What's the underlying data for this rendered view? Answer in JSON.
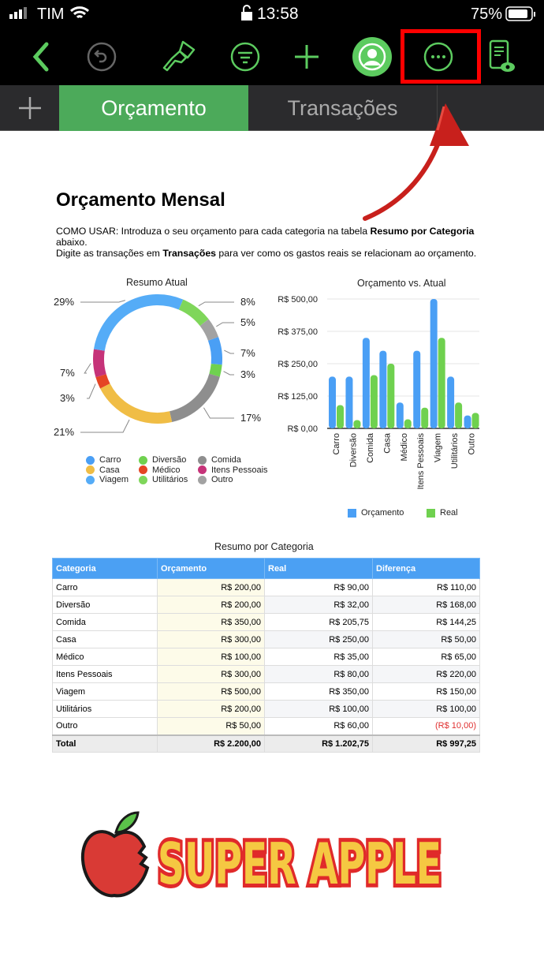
{
  "status": {
    "carrier": "TIM",
    "time": "13:58",
    "battery": "75%"
  },
  "tabs": [
    {
      "label": "Orçamento",
      "active": true
    },
    {
      "label": "Transações",
      "active": false
    }
  ],
  "page": {
    "title": "Orçamento Mensal",
    "desc1a": "COMO USAR: Introduza o seu orçamento para cada categoria na tabela ",
    "desc1b": "Resumo por Categoria",
    "desc1c": " abaixo.",
    "desc2a": "Digite as transações em ",
    "desc2b": "Transações",
    "desc2c": " para ver como os gastos reais se relacionam ao orçamento."
  },
  "colors": {
    "accent": "#4caf50",
    "highlight": "#ff0000"
  },
  "chart_data": [
    {
      "type": "pie",
      "title": "Resumo Atual",
      "donut": true,
      "slices": [
        {
          "name": "Carro",
          "value": 7,
          "color": "#4a9ff5"
        },
        {
          "name": "Diversão",
          "value": 3,
          "color": "#6fd14f"
        },
        {
          "name": "Comida",
          "value": 17,
          "color": "#8e8e8e"
        },
        {
          "name": "Casa",
          "value": 21,
          "color": "#f0bd45"
        },
        {
          "name": "Médico",
          "value": 3,
          "color": "#e54524"
        },
        {
          "name": "Itens Pessoais",
          "value": 7,
          "color": "#c63379"
        },
        {
          "name": "Viagem",
          "value": 29,
          "color": "#55acf7"
        },
        {
          "name": "Utilitários",
          "value": 8,
          "color": "#7fd65a"
        },
        {
          "name": "Outro",
          "value": 5,
          "color": "#a2a2a2"
        }
      ],
      "labels": [
        "7%",
        "3%",
        "17%",
        "21%",
        "3%",
        "7%",
        "29%",
        "8%",
        "5%"
      ],
      "legend": "bottom"
    },
    {
      "type": "bar",
      "title": "Orçamento vs. Atual",
      "categories": [
        "Carro",
        "Diversão",
        "Comida",
        "Casa",
        "Médico",
        "Itens Pessoais",
        "Viagem",
        "Utilitários",
        "Outro"
      ],
      "series": [
        {
          "name": "Orçamento",
          "color": "#4a9ff5",
          "values": [
            200,
            200,
            350,
            300,
            100,
            300,
            500,
            200,
            50
          ]
        },
        {
          "name": "Real",
          "color": "#6fd14f",
          "values": [
            90,
            32,
            205.75,
            250,
            35,
            80,
            350,
            100,
            60
          ]
        }
      ],
      "yticks": [
        "R$ 0,00",
        "R$ 125,00",
        "R$ 250,00",
        "R$ 375,00",
        "R$ 500,00"
      ],
      "ylim": [
        0,
        500
      ],
      "grid": true,
      "legend": "bottom"
    }
  ],
  "table": {
    "title": "Resumo por Categoria",
    "headers": [
      "Categoria",
      "Orçamento",
      "Real",
      "Diferença"
    ],
    "rows": [
      [
        "Carro",
        "R$ 200,00",
        "R$ 90,00",
        "R$ 110,00"
      ],
      [
        "Diversão",
        "R$ 200,00",
        "R$ 32,00",
        "R$ 168,00"
      ],
      [
        "Comida",
        "R$ 350,00",
        "R$ 205,75",
        "R$ 144,25"
      ],
      [
        "Casa",
        "R$ 300,00",
        "R$ 250,00",
        "R$ 50,00"
      ],
      [
        "Médico",
        "R$ 100,00",
        "R$ 35,00",
        "R$ 65,00"
      ],
      [
        "Itens Pessoais",
        "R$ 300,00",
        "R$ 80,00",
        "R$ 220,00"
      ],
      [
        "Viagem",
        "R$ 500,00",
        "R$ 350,00",
        "R$ 150,00"
      ],
      [
        "Utilitários",
        "R$ 200,00",
        "R$ 100,00",
        "R$ 100,00"
      ],
      [
        "Outro",
        "R$ 50,00",
        "R$ 60,00",
        "(R$ 10,00)"
      ]
    ],
    "total": [
      "Total",
      "R$ 2.200,00",
      "R$ 1.202,75",
      "R$ 997,25"
    ]
  },
  "logo": {
    "text": "SUPER APPLE"
  }
}
